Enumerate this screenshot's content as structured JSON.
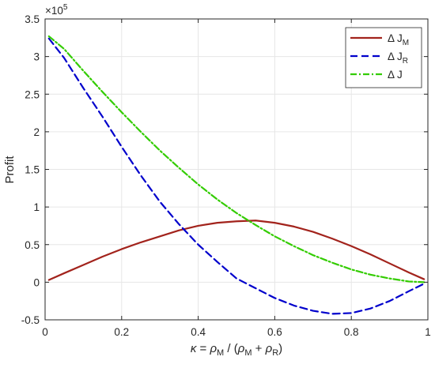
{
  "chart_data": {
    "type": "line",
    "title": "",
    "ylabel": "Profit",
    "xlabel_parts": {
      "kappa": "κ",
      "eq": " = ",
      "rho": "ρ",
      "sub_m": "M",
      "slash_open": " / (",
      "plus": " + ",
      "sub_r": "R",
      "close": ")"
    },
    "exponent_label": {
      "base": "×10",
      "power": "5"
    },
    "xlim": [
      0,
      1
    ],
    "ylim": [
      -0.5,
      3.5
    ],
    "y_scale_factor": 100000,
    "xticks": [
      0,
      0.2,
      0.4,
      0.6,
      0.8,
      1
    ],
    "xtick_labels": [
      "0",
      "0.2",
      "0.4",
      "0.6",
      "0.8",
      "1"
    ],
    "yticks": [
      -0.5,
      0,
      0.5,
      1,
      1.5,
      2,
      2.5,
      3,
      3.5
    ],
    "ytick_labels": [
      "-0.5",
      "0",
      "0.5",
      "1",
      "1.5",
      "2",
      "2.5",
      "3",
      "3.5"
    ],
    "grid": true,
    "legend_placement": "top-right",
    "x": [
      0.01,
      0.05,
      0.1,
      0.15,
      0.2,
      0.25,
      0.3,
      0.35,
      0.4,
      0.45,
      0.5,
      0.55,
      0.6,
      0.65,
      0.7,
      0.75,
      0.8,
      0.85,
      0.9,
      0.95,
      0.99
    ],
    "series": [
      {
        "name": "Δ J_M",
        "label": {
          "prefix": "Δ J",
          "sub": "M"
        },
        "color": "#a2231c",
        "dash": "solid",
        "values": [
          0.03,
          0.12,
          0.23,
          0.34,
          0.44,
          0.53,
          0.61,
          0.69,
          0.75,
          0.79,
          0.81,
          0.82,
          0.79,
          0.74,
          0.67,
          0.58,
          0.48,
          0.37,
          0.25,
          0.13,
          0.04
        ]
      },
      {
        "name": "Δ J_R",
        "label": {
          "prefix": "Δ J",
          "sub": "R"
        },
        "color": "#0000cc",
        "dash": "dashed",
        "values": [
          3.24,
          2.98,
          2.58,
          2.2,
          1.8,
          1.42,
          1.07,
          0.77,
          0.5,
          0.27,
          0.05,
          -0.08,
          -0.21,
          -0.31,
          -0.38,
          -0.42,
          -0.41,
          -0.35,
          -0.25,
          -0.12,
          -0.02
        ]
      },
      {
        "name": "Δ J",
        "label": {
          "prefix": "Δ J",
          "sub": ""
        },
        "color": "#33cc00",
        "dash": "dashdot",
        "values": [
          3.27,
          3.1,
          2.81,
          2.53,
          2.26,
          2.0,
          1.75,
          1.52,
          1.3,
          1.1,
          0.92,
          0.76,
          0.61,
          0.48,
          0.36,
          0.26,
          0.17,
          0.1,
          0.05,
          0.01,
          0.0
        ]
      }
    ]
  }
}
